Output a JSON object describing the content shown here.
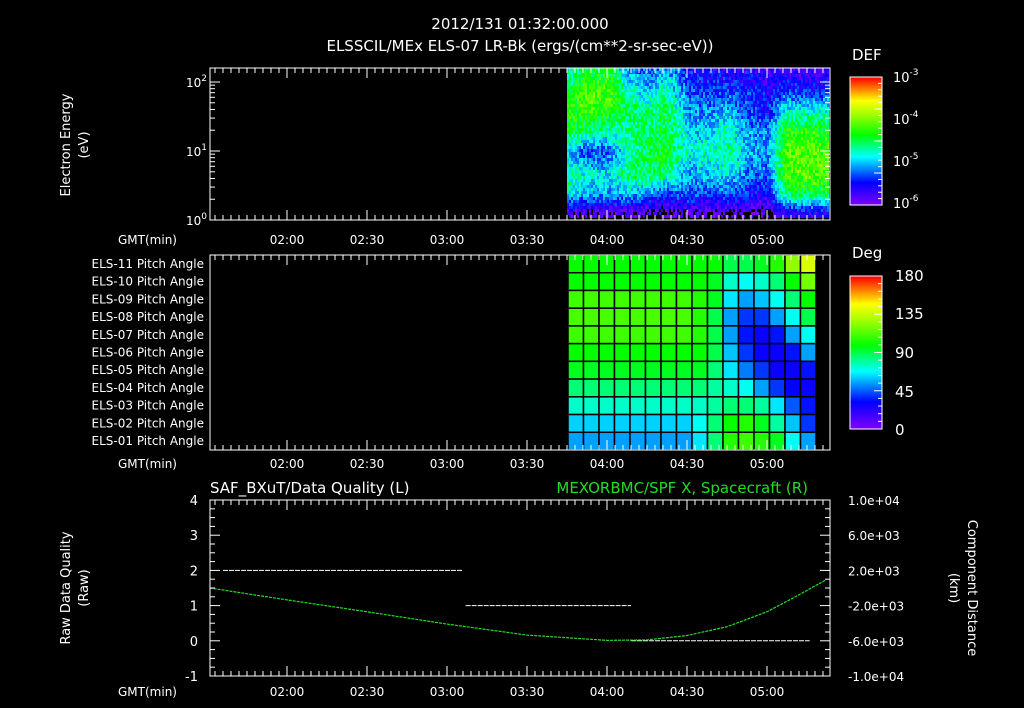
{
  "header": {
    "timestamp": "2012/131 01:32:00.000",
    "title": "ELSSCIL/MEx ELS-07 LR-Bk  (ergs/(cm**2-sr-sec-eV))"
  },
  "time_axis": {
    "label": "GMT(min)",
    "ticks": [
      "02:00",
      "02:30",
      "03:00",
      "03:30",
      "04:00",
      "04:30",
      "05:00"
    ]
  },
  "chart_data": [
    {
      "type": "heatmap",
      "name": "energy-spectrogram",
      "ylabel": "Electron Energy",
      "yunits": "(eV)",
      "yscale": "log",
      "ylim": [
        1,
        158
      ],
      "yticks": [
        {
          "base": "10",
          "exp": "2"
        },
        {
          "base": "10",
          "exp": "1"
        },
        {
          "base": "10",
          "exp": "0"
        }
      ],
      "colorbar": {
        "title": "DEF",
        "scale": "log",
        "range": [
          -6.3,
          -3
        ],
        "ticks": [
          {
            "base": "10",
            "exp": "-3"
          },
          {
            "base": "10",
            "exp": "-4"
          },
          {
            "base": "10",
            "exp": "-5"
          },
          {
            "base": "10",
            "exp": "-6"
          }
        ]
      },
      "xlim_time": [
        "01:31",
        "05:23"
      ],
      "data_start": "03:45",
      "time_bins": [
        "03:45",
        "03:52",
        "04:00",
        "04:07",
        "04:15",
        "04:22",
        "04:30",
        "04:37",
        "04:45",
        "04:52",
        "05:00",
        "05:07",
        "05:15"
      ],
      "energy_bins_eV": [
        1.3,
        2.5,
        5,
        10,
        20,
        40,
        80,
        150
      ],
      "log_def": [
        [
          -6.2,
          -6.2,
          -6.2,
          -6.2,
          -6.3,
          -6.3,
          -6.2,
          -6.3,
          -6.3,
          -6.2,
          -6.4,
          -5.9,
          -5.9
        ],
        [
          -5.0,
          -5.2,
          -5.3,
          -5.2,
          -5.3,
          -5.6,
          -5.4,
          -5.6,
          -5.5,
          -5.7,
          -5.8,
          -4.6,
          -4.6
        ],
        [
          -4.8,
          -5.0,
          -5.1,
          -4.7,
          -4.6,
          -4.7,
          -5.3,
          -5.2,
          -5.0,
          -5.4,
          -5.5,
          -4.3,
          -4.2
        ],
        [
          -5.3,
          -5.6,
          -5.5,
          -5.0,
          -4.6,
          -4.5,
          -5.0,
          -4.9,
          -4.8,
          -5.2,
          -5.3,
          -4.2,
          -4.2
        ],
        [
          -4.6,
          -4.7,
          -4.9,
          -4.8,
          -4.7,
          -4.6,
          -5.1,
          -5.2,
          -4.9,
          -5.3,
          -5.4,
          -4.4,
          -4.4
        ],
        [
          -4.4,
          -4.3,
          -4.4,
          -4.6,
          -4.8,
          -4.6,
          -5.3,
          -5.4,
          -5.2,
          -5.5,
          -5.7,
          -5.0,
          -5.0
        ],
        [
          -4.6,
          -4.3,
          -4.2,
          -4.9,
          -5.2,
          -4.9,
          -5.5,
          -5.6,
          -5.6,
          -5.6,
          -5.8,
          -5.6,
          -5.7
        ],
        [
          -4.9,
          -4.6,
          -4.5,
          -5.3,
          -5.5,
          -5.2,
          -5.7,
          -5.8,
          -5.8,
          -5.8,
          -6.0,
          -5.9,
          -6.0
        ]
      ]
    },
    {
      "type": "heatmap",
      "name": "pitch-angle-grid",
      "row_labels": [
        "ELS-11 Pitch Angle",
        "ELS-10 Pitch Angle",
        "ELS-09 Pitch Angle",
        "ELS-08 Pitch Angle",
        "ELS-07 Pitch Angle",
        "ELS-06 Pitch Angle",
        "ELS-05 Pitch Angle",
        "ELS-04 Pitch Angle",
        "ELS-03 Pitch Angle",
        "ELS-02 Pitch Angle",
        "ELS-01 Pitch Angle"
      ],
      "colorbar": {
        "title": "Deg",
        "range": [
          0,
          180
        ],
        "ticks": [
          "180",
          "135",
          "90",
          "45",
          "0"
        ]
      },
      "data_start": "03:45",
      "data_end": "05:18",
      "values_deg": [
        [
          100,
          100,
          100,
          100,
          100,
          100,
          100,
          100,
          100,
          100,
          90,
          90,
          95,
          105,
          125,
          140
        ],
        [
          100,
          100,
          100,
          100,
          100,
          100,
          100,
          100,
          100,
          95,
          75,
          70,
          75,
          85,
          100,
          120
        ],
        [
          110,
          110,
          110,
          110,
          110,
          110,
          110,
          110,
          105,
          95,
          65,
          55,
          60,
          70,
          85,
          100
        ],
        [
          112,
          112,
          112,
          112,
          112,
          112,
          112,
          112,
          105,
          90,
          55,
          40,
          40,
          55,
          70,
          90
        ],
        [
          110,
          110,
          110,
          110,
          110,
          110,
          110,
          110,
          105,
          90,
          55,
          35,
          30,
          35,
          55,
          70
        ],
        [
          100,
          100,
          100,
          100,
          100,
          100,
          100,
          100,
          100,
          90,
          60,
          40,
          30,
          30,
          35,
          55
        ],
        [
          95,
          95,
          95,
          95,
          95,
          95,
          95,
          95,
          95,
          85,
          65,
          50,
          40,
          30,
          30,
          35
        ],
        [
          85,
          85,
          85,
          85,
          85,
          85,
          85,
          85,
          85,
          80,
          75,
          70,
          55,
          40,
          32,
          30
        ],
        [
          75,
          75,
          75,
          75,
          75,
          75,
          75,
          75,
          75,
          80,
          85,
          85,
          80,
          65,
          45,
          35
        ],
        [
          62,
          62,
          62,
          62,
          62,
          62,
          62,
          62,
          70,
          85,
          100,
          105,
          95,
          80,
          60,
          40
        ],
        [
          55,
          55,
          55,
          55,
          55,
          55,
          55,
          55,
          65,
          85,
          105,
          110,
          105,
          95,
          70,
          55
        ]
      ]
    },
    {
      "type": "line",
      "name": "quality-and-position",
      "title_left": "SAF_BXuT/Data Quality (L)",
      "title_right": "MEXORBMC/SPF X, Spacecraft (R)",
      "ylabel_left": "Raw Data Quality",
      "yunits_left": "(Raw)",
      "ylim_left": [
        -1,
        4
      ],
      "yticks_left": [
        "4",
        "3",
        "2",
        "1",
        "0",
        "-1"
      ],
      "ylabel_right": "Component Distance",
      "yunits_right": "(km)",
      "ylim_right": [
        -10000,
        10000
      ],
      "yticks_right": [
        "1.0e+04",
        "6.0e+03",
        "2.0e+03",
        "-2.0e+03",
        "-6.0e+03",
        "-1.0e+04"
      ],
      "series": [
        {
          "name": "Data Quality (L)",
          "color": "#ffffff",
          "segments": [
            {
              "from": "01:36",
              "to": "03:06",
              "value": 2
            },
            {
              "from": "03:07",
              "to": "04:09",
              "value": 1
            },
            {
              "from": "04:09",
              "to": "05:16",
              "value": 0
            }
          ]
        },
        {
          "name": "SPF X Spacecraft (R)",
          "color": "#22dd22",
          "x": [
            "01:31",
            "02:00",
            "02:30",
            "03:00",
            "03:30",
            "04:00",
            "04:15",
            "04:30",
            "04:45",
            "05:00",
            "05:10",
            "05:22"
          ],
          "y_km": [
            0,
            -1350,
            -2700,
            -4100,
            -5350,
            -5950,
            -5900,
            -5400,
            -4400,
            -2700,
            -1100,
            900
          ]
        }
      ]
    }
  ]
}
